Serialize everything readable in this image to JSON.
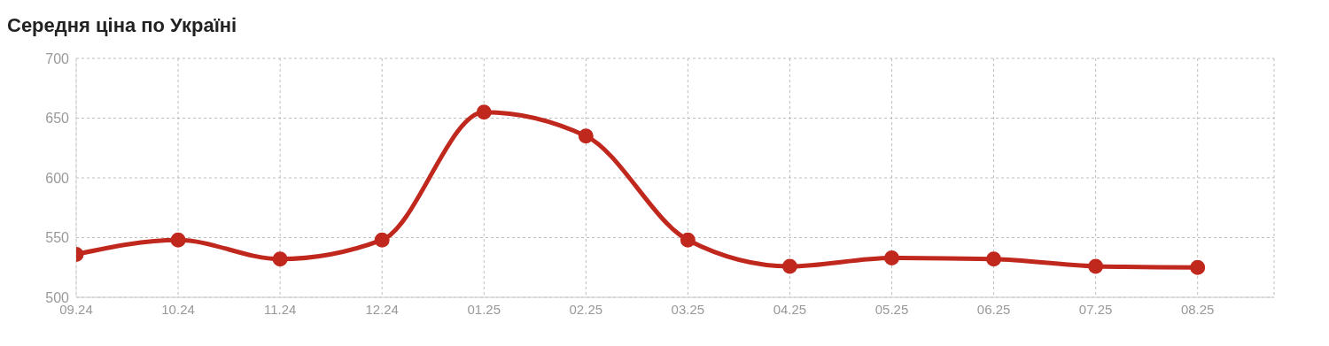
{
  "chart_data": {
    "type": "line",
    "title": "Середня ціна по Україні",
    "categories": [
      "09.24",
      "10.24",
      "11.24",
      "12.24",
      "01.25",
      "02.25",
      "03.25",
      "04.25",
      "05.25",
      "06.25",
      "07.25",
      "08.25"
    ],
    "series": [
      {
        "color": "#c0281e",
        "values": [
          536,
          548,
          532,
          548,
          655,
          635,
          548,
          526,
          533,
          532,
          526,
          525
        ]
      }
    ],
    "ylim": [
      500,
      700
    ],
    "yticks": [
      500,
      550,
      600,
      650,
      700
    ],
    "grid": true,
    "marker": "circle",
    "line_style": "solid"
  }
}
